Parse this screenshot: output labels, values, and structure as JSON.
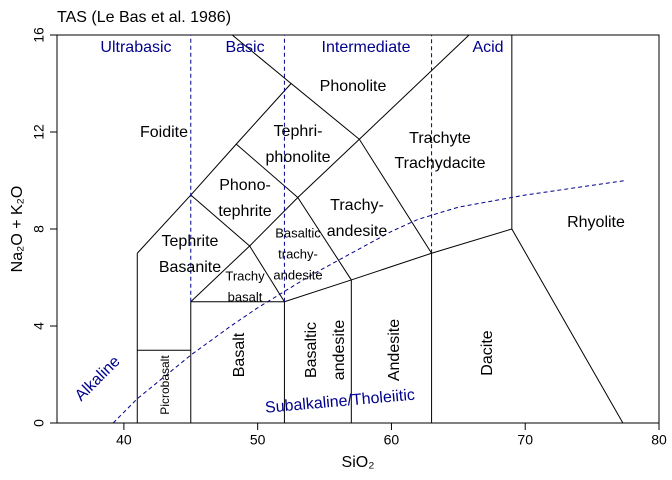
{
  "chart_data": {
    "type": "tas",
    "title": "TAS (Le Bas et al. 1986)",
    "xlabel": "SiO₂",
    "ylabel": "Na₂O + K₂O",
    "xlim": [
      35,
      80
    ],
    "ylim": [
      0,
      16
    ],
    "xticks": [
      40,
      50,
      60,
      70,
      80
    ],
    "yticks": [
      0,
      4,
      8,
      12,
      16
    ],
    "boundary_color": "#000000",
    "boundaries": [
      {
        "x": [
          41,
          41
        ],
        "y": [
          0,
          7
        ]
      },
      {
        "x": [
          41,
          45
        ],
        "y": [
          3,
          3
        ]
      },
      {
        "x": [
          45,
          45
        ],
        "y": [
          0,
          5
        ]
      },
      {
        "x": [
          52,
          52
        ],
        "y": [
          0,
          5
        ]
      },
      {
        "x": [
          57,
          57
        ],
        "y": [
          0,
          5.9
        ]
      },
      {
        "x": [
          63,
          63
        ],
        "y": [
          0,
          7
        ]
      },
      {
        "x": [
          45,
          52,
          57,
          63,
          69
        ],
        "y": [
          5,
          5,
          5.9,
          7,
          8
        ]
      },
      {
        "x": [
          69,
          77.3
        ],
        "y": [
          8,
          0
        ]
      },
      {
        "x": [
          69,
          69
        ],
        "y": [
          8,
          16
        ]
      },
      {
        "x": [
          41,
          45,
          48.4,
          52.5,
          57.6,
          63
        ],
        "y": [
          7,
          9.4,
          11.5,
          14,
          11.7,
          7
        ]
      },
      {
        "x": [
          48.1,
          52.5
        ],
        "y": [
          16,
          14
        ]
      },
      {
        "x": [
          57.6,
          65.8
        ],
        "y": [
          11.7,
          16
        ]
      },
      {
        "x": [
          45,
          49.4,
          53,
          57.6
        ],
        "y": [
          5,
          7.3,
          9.3,
          11.7
        ]
      },
      {
        "x": [
          49.4,
          52
        ],
        "y": [
          7.3,
          5
        ]
      },
      {
        "x": [
          53,
          57
        ],
        "y": [
          9.3,
          5.9
        ]
      },
      {
        "x": [
          48.4,
          53
        ],
        "y": [
          11.5,
          9.3
        ]
      },
      {
        "x": [
          45,
          49.4
        ],
        "y": [
          9.4,
          7.3
        ]
      }
    ],
    "division_color": "#00008b",
    "divisions": [
      {
        "x": [
          45,
          45
        ],
        "y": [
          5,
          16
        ]
      },
      {
        "x": [
          52,
          52
        ],
        "y": [
          5,
          16
        ]
      },
      {
        "x": [
          63,
          63
        ],
        "y": [
          7,
          16
        ]
      },
      {
        "x": [
          39.2,
          41,
          45,
          48,
          50,
          53.7,
          55,
          60,
          62,
          65,
          70,
          77.5
        ],
        "y": [
          0,
          1,
          2.8,
          4,
          4.75,
          6,
          6.4,
          7.9,
          8.4,
          8.9,
          9.4,
          10
        ]
      }
    ],
    "fields": [
      {
        "lines": [
          "Foidite"
        ]
      },
      {
        "lines": [
          "Phonolite"
        ]
      },
      {
        "lines": [
          "Tephri-",
          "phonolite"
        ]
      },
      {
        "lines": [
          "Trachyte",
          "Trachydacite"
        ]
      },
      {
        "lines": [
          "Phono-",
          "tephrite"
        ]
      },
      {
        "lines": [
          "Trachy-",
          "andesite"
        ]
      },
      {
        "lines": [
          "Tephrite",
          "Basanite"
        ]
      },
      {
        "lines": [
          "Basaltic",
          "trachy-",
          "andesite"
        ]
      },
      {
        "lines": [
          "Trachy",
          "basalt"
        ]
      },
      {
        "lines": [
          "Rhyolite"
        ]
      },
      {
        "lines": [
          "Picrobasalt"
        ]
      },
      {
        "lines": [
          "Basalt"
        ]
      },
      {
        "lines": [
          "Basaltic",
          "andesite"
        ]
      },
      {
        "lines": [
          "Andesite"
        ]
      },
      {
        "lines": [
          "Dacite"
        ]
      }
    ],
    "groups": [
      "Ultrabasic",
      "Basic",
      "Intermediate",
      "Acid",
      "Alkaline",
      "Subalkaline/Tholeiitic"
    ]
  }
}
